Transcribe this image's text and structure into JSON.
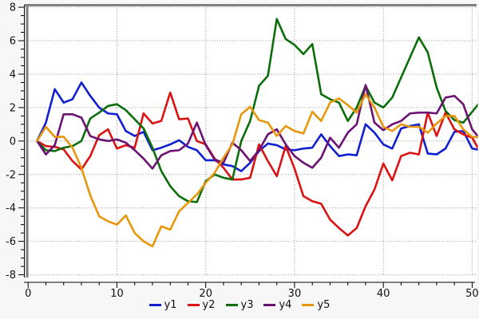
{
  "chart_data": {
    "type": "line",
    "title": "",
    "xlabel": "",
    "ylabel": "",
    "x": [
      1,
      2,
      3,
      4,
      5,
      6,
      7,
      8,
      9,
      10,
      11,
      12,
      13,
      14,
      15,
      16,
      17,
      18,
      19,
      20,
      21,
      22,
      23,
      24,
      25,
      26,
      27,
      28,
      29,
      30,
      31,
      32,
      33,
      34,
      35,
      36,
      37,
      38,
      39,
      40,
      41,
      42,
      43,
      44,
      45,
      46,
      47,
      48,
      49,
      50,
      51
    ],
    "series": [
      {
        "name": "y1",
        "color": "#1020d0",
        "values": [
          0.0,
          1.1,
          3.1,
          2.3,
          2.5,
          3.5,
          2.7,
          2.0,
          1.65,
          1.6,
          0.6,
          0.3,
          0.55,
          -0.55,
          -0.4,
          -0.2,
          0.05,
          -0.35,
          -0.55,
          -1.15,
          -1.15,
          -1.4,
          -1.5,
          -1.8,
          -1.3,
          -0.6,
          -0.15,
          -0.25,
          -0.5,
          -0.55,
          -0.45,
          -0.4,
          0.4,
          -0.3,
          -0.9,
          -0.8,
          -0.85,
          1.0,
          0.5,
          -0.2,
          -0.45,
          0.75,
          0.9,
          1.0,
          -0.75,
          -0.8,
          -0.45,
          0.55,
          0.6,
          -0.45,
          -0.55
        ]
      },
      {
        "name": "y2",
        "color": "#dd1111",
        "values": [
          0.0,
          -0.3,
          -0.35,
          -0.5,
          -1.2,
          -1.7,
          -0.9,
          0.35,
          0.7,
          -0.45,
          -0.25,
          -0.4,
          1.65,
          1.05,
          1.2,
          2.9,
          1.3,
          1.35,
          0.0,
          -0.2,
          -1.05,
          -1.6,
          -2.3,
          -2.3,
          -2.2,
          -0.2,
          -1.2,
          -2.1,
          -0.3,
          -1.65,
          -3.3,
          -3.6,
          -3.75,
          -4.7,
          -5.2,
          -5.65,
          -5.2,
          -3.9,
          -2.9,
          -1.35,
          -2.35,
          -0.9,
          -0.7,
          -0.8,
          1.7,
          0.3,
          1.7,
          0.7,
          0.4,
          0.2,
          -0.75
        ]
      },
      {
        "name": "y3",
        "color": "#0b6e0b",
        "values": [
          0.0,
          -0.55,
          -0.6,
          -0.4,
          -0.3,
          0.0,
          1.35,
          1.7,
          2.1,
          2.2,
          1.85,
          1.3,
          0.75,
          -0.4,
          -1.8,
          -2.7,
          -3.3,
          -3.6,
          -3.65,
          -2.4,
          -2.0,
          -2.2,
          -2.3,
          0.0,
          1.2,
          3.3,
          3.9,
          7.3,
          6.1,
          5.75,
          5.2,
          5.8,
          2.8,
          2.5,
          2.3,
          1.2,
          2.0,
          3.3,
          2.3,
          2.0,
          2.6,
          3.8,
          5.0,
          6.2,
          5.3,
          3.2,
          1.8,
          1.25,
          1.1,
          1.75,
          2.4
        ]
      },
      {
        "name": "y4",
        "color": "#6b1272",
        "values": [
          0.0,
          -0.8,
          -0.25,
          1.6,
          1.6,
          1.4,
          0.3,
          0.1,
          0.0,
          0.1,
          -0.1,
          -0.55,
          -1.05,
          -1.65,
          -0.85,
          -0.6,
          -0.55,
          -0.15,
          1.1,
          -0.25,
          -1.1,
          -1.3,
          -0.1,
          -0.55,
          -1.2,
          -0.55,
          0.4,
          0.7,
          -0.2,
          -0.9,
          -1.3,
          -1.6,
          -1.0,
          0.2,
          -0.4,
          0.5,
          1.0,
          3.35,
          1.1,
          0.65,
          1.0,
          1.2,
          1.65,
          1.7,
          1.7,
          1.65,
          2.6,
          2.7,
          2.2,
          0.7,
          0.05
        ]
      },
      {
        "name": "y5",
        "color": "#e8960c",
        "values": [
          0.0,
          0.85,
          0.25,
          0.25,
          -0.4,
          -1.6,
          -3.25,
          -4.5,
          -4.8,
          -5.0,
          -4.45,
          -5.5,
          -6.0,
          -6.3,
          -5.1,
          -5.3,
          -4.2,
          -3.7,
          -3.2,
          -2.5,
          -1.9,
          -1.0,
          -0.2,
          1.6,
          2.05,
          1.25,
          1.1,
          0.3,
          0.9,
          0.6,
          0.45,
          1.75,
          1.2,
          2.3,
          2.55,
          2.15,
          1.7,
          2.8,
          2.0,
          0.85,
          0.6,
          1.0,
          0.85,
          0.85,
          0.5,
          1.05,
          1.5,
          1.5,
          0.7,
          0.25,
          0.2
        ]
      }
    ],
    "axes": {
      "x": {
        "min": -0.2,
        "max": 50.5,
        "major_ticks": [
          0,
          10,
          20,
          30,
          40,
          50
        ],
        "minor_step": 2
      },
      "y": {
        "min": -8.45,
        "max": 8.1,
        "major_ticks": [
          -8,
          -6,
          -4,
          -2,
          0,
          2,
          4,
          6,
          8
        ],
        "minor_step": 0.5
      }
    },
    "grid": "dotted",
    "legend_position": "bottom",
    "colors": {
      "background": "#f7f7f7",
      "plot_background": "#ffffff",
      "frame": "#808080",
      "grid": "#8f8f8f",
      "axis": "#000000",
      "tick_label": "#111111"
    }
  }
}
